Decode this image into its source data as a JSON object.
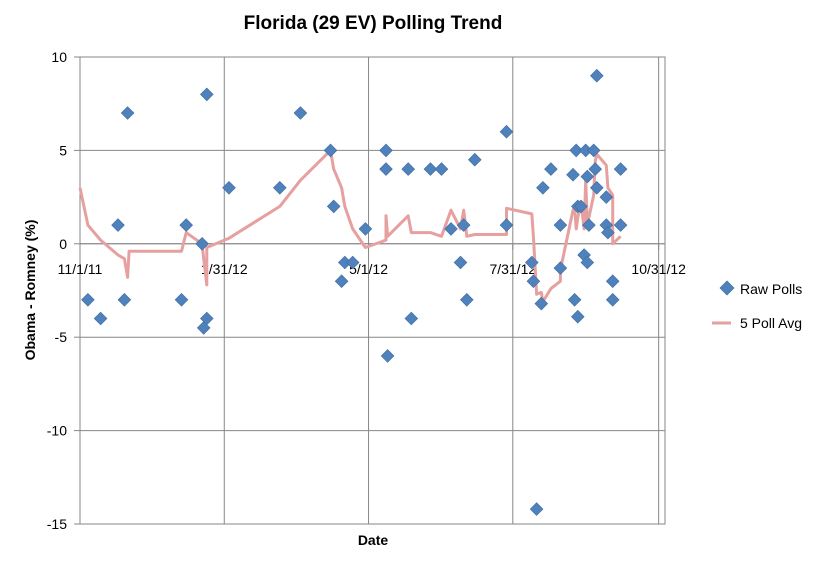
{
  "chart_data": {
    "type": "scatter",
    "title": "Florida (29 EV) Polling Trend",
    "xlabel": "Date",
    "ylabel": "Obama - Romney (%)",
    "x_ticks": [
      "11/1/11",
      "1/31/12",
      "5/1/12",
      "7/31/12",
      "10/31/12"
    ],
    "x_range": [
      "2011-11-01",
      "2012-11-04"
    ],
    "y_ticks": [
      "10",
      "5",
      "0",
      "-5",
      "-10",
      "-15"
    ],
    "ylim": [
      -15,
      10
    ],
    "grid": true,
    "legend_position": "right",
    "series": [
      {
        "name": "Raw Polls",
        "kind": "scatter",
        "marker": "diamond",
        "color": "#4f81bd",
        "points": [
          [
            "2011-11-06",
            -3.0
          ],
          [
            "2011-11-14",
            -4.0
          ],
          [
            "2011-11-25",
            1.0
          ],
          [
            "2011-11-29",
            -3.0
          ],
          [
            "2011-12-01",
            7.0
          ],
          [
            "2012-01-04",
            -3.0
          ],
          [
            "2012-01-07",
            1.0
          ],
          [
            "2012-01-17",
            0.0
          ],
          [
            "2012-01-18",
            -4.5
          ],
          [
            "2012-01-20",
            -4.0
          ],
          [
            "2012-01-20",
            8.0
          ],
          [
            "2012-02-03",
            3.0
          ],
          [
            "2012-03-06",
            3.0
          ],
          [
            "2012-03-19",
            7.0
          ],
          [
            "2012-04-07",
            5.0
          ],
          [
            "2012-04-09",
            2.0
          ],
          [
            "2012-04-14",
            -2.0
          ],
          [
            "2012-04-16",
            -1.0
          ],
          [
            "2012-04-21",
            -1.0
          ],
          [
            "2012-04-29",
            0.8
          ],
          [
            "2012-05-12",
            5.0
          ],
          [
            "2012-05-12",
            4.0
          ],
          [
            "2012-05-13",
            -6.0
          ],
          [
            "2012-05-26",
            4.0
          ],
          [
            "2012-05-28",
            -4.0
          ],
          [
            "2012-06-09",
            4.0
          ],
          [
            "2012-06-16",
            4.0
          ],
          [
            "2012-06-22",
            0.8
          ],
          [
            "2012-06-28",
            -1.0
          ],
          [
            "2012-06-30",
            1.0
          ],
          [
            "2012-07-02",
            -3.0
          ],
          [
            "2012-07-07",
            4.5
          ],
          [
            "2012-07-27",
            6.0
          ],
          [
            "2012-07-27",
            1.0
          ],
          [
            "2012-08-12",
            -1.0
          ],
          [
            "2012-08-13",
            -2.0
          ],
          [
            "2012-08-15",
            -14.2
          ],
          [
            "2012-08-18",
            -3.2
          ],
          [
            "2012-08-19",
            3.0
          ],
          [
            "2012-08-24",
            4.0
          ],
          [
            "2012-08-30",
            1.0
          ],
          [
            "2012-08-30",
            -1.3
          ],
          [
            "2012-09-07",
            3.7
          ],
          [
            "2012-09-08",
            -3.0
          ],
          [
            "2012-09-09",
            5.0
          ],
          [
            "2012-09-10",
            2.0
          ],
          [
            "2012-09-10",
            -3.9
          ],
          [
            "2012-09-12",
            2.0
          ],
          [
            "2012-09-14",
            -0.6
          ],
          [
            "2012-09-15",
            5.0
          ],
          [
            "2012-09-16",
            3.6
          ],
          [
            "2012-09-16",
            -1.0
          ],
          [
            "2012-09-17",
            1.0
          ],
          [
            "2012-09-20",
            5.0
          ],
          [
            "2012-09-21",
            4.0
          ],
          [
            "2012-09-22",
            3.0
          ],
          [
            "2012-09-22",
            9.0
          ],
          [
            "2012-09-28",
            2.5
          ],
          [
            "2012-09-28",
            1.0
          ],
          [
            "2012-09-29",
            0.6
          ],
          [
            "2012-10-02",
            -2.0
          ],
          [
            "2012-10-02",
            -3.0
          ],
          [
            "2012-10-07",
            4.0
          ],
          [
            "2012-10-07",
            1.0
          ]
        ]
      },
      {
        "name": "5 Poll Avg",
        "kind": "line",
        "color": "#e6a0a0",
        "points": [
          [
            "2011-11-01",
            3.0
          ],
          [
            "2011-11-06",
            1.0
          ],
          [
            "2011-11-14",
            0.2
          ],
          [
            "2011-11-25",
            -0.6
          ],
          [
            "2011-11-29",
            -0.8
          ],
          [
            "2011-12-01",
            -1.8
          ],
          [
            "2011-12-02",
            -0.4
          ],
          [
            "2012-01-04",
            -0.4
          ],
          [
            "2012-01-07",
            0.6
          ],
          [
            "2012-01-17",
            0.0
          ],
          [
            "2012-01-18",
            -0.8
          ],
          [
            "2012-01-20",
            -2.2
          ],
          [
            "2012-01-20",
            -0.2
          ],
          [
            "2012-02-03",
            0.3
          ],
          [
            "2012-03-06",
            2.0
          ],
          [
            "2012-03-19",
            3.4
          ],
          [
            "2012-04-07",
            5.0
          ],
          [
            "2012-04-09",
            4.0
          ],
          [
            "2012-04-14",
            3.0
          ],
          [
            "2012-04-16",
            2.0
          ],
          [
            "2012-04-21",
            0.8
          ],
          [
            "2012-04-29",
            -0.2
          ],
          [
            "2012-05-12",
            0.2
          ],
          [
            "2012-05-12",
            1.5
          ],
          [
            "2012-05-13",
            0.4
          ],
          [
            "2012-05-26",
            1.5
          ],
          [
            "2012-05-28",
            0.6
          ],
          [
            "2012-06-09",
            0.6
          ],
          [
            "2012-06-16",
            0.4
          ],
          [
            "2012-06-22",
            1.8
          ],
          [
            "2012-06-28",
            0.8
          ],
          [
            "2012-06-30",
            1.8
          ],
          [
            "2012-07-02",
            0.4
          ],
          [
            "2012-07-07",
            0.5
          ],
          [
            "2012-07-27",
            0.5
          ],
          [
            "2012-07-27",
            1.9
          ],
          [
            "2012-08-12",
            1.6
          ],
          [
            "2012-08-13",
            0.4
          ],
          [
            "2012-08-15",
            -2.7
          ],
          [
            "2012-08-18",
            -2.6
          ],
          [
            "2012-08-19",
            -3.1
          ],
          [
            "2012-08-24",
            -2.4
          ],
          [
            "2012-08-30",
            -2.0
          ],
          [
            "2012-08-30",
            -1.4
          ],
          [
            "2012-09-07",
            1.8
          ],
          [
            "2012-09-08",
            2.0
          ],
          [
            "2012-09-09",
            0.8
          ],
          [
            "2012-09-10",
            1.4
          ],
          [
            "2012-09-12",
            2.2
          ],
          [
            "2012-09-14",
            0.8
          ],
          [
            "2012-09-15",
            3.4
          ],
          [
            "2012-09-16",
            1.2
          ],
          [
            "2012-09-17",
            1.4
          ],
          [
            "2012-09-20",
            2.6
          ],
          [
            "2012-09-21",
            4.4
          ],
          [
            "2012-09-22",
            4.8
          ],
          [
            "2012-09-28",
            4.2
          ],
          [
            "2012-09-29",
            3.0
          ],
          [
            "2012-10-02",
            2.6
          ],
          [
            "2012-10-02",
            0.0
          ],
          [
            "2012-10-07",
            0.4
          ]
        ]
      }
    ]
  }
}
